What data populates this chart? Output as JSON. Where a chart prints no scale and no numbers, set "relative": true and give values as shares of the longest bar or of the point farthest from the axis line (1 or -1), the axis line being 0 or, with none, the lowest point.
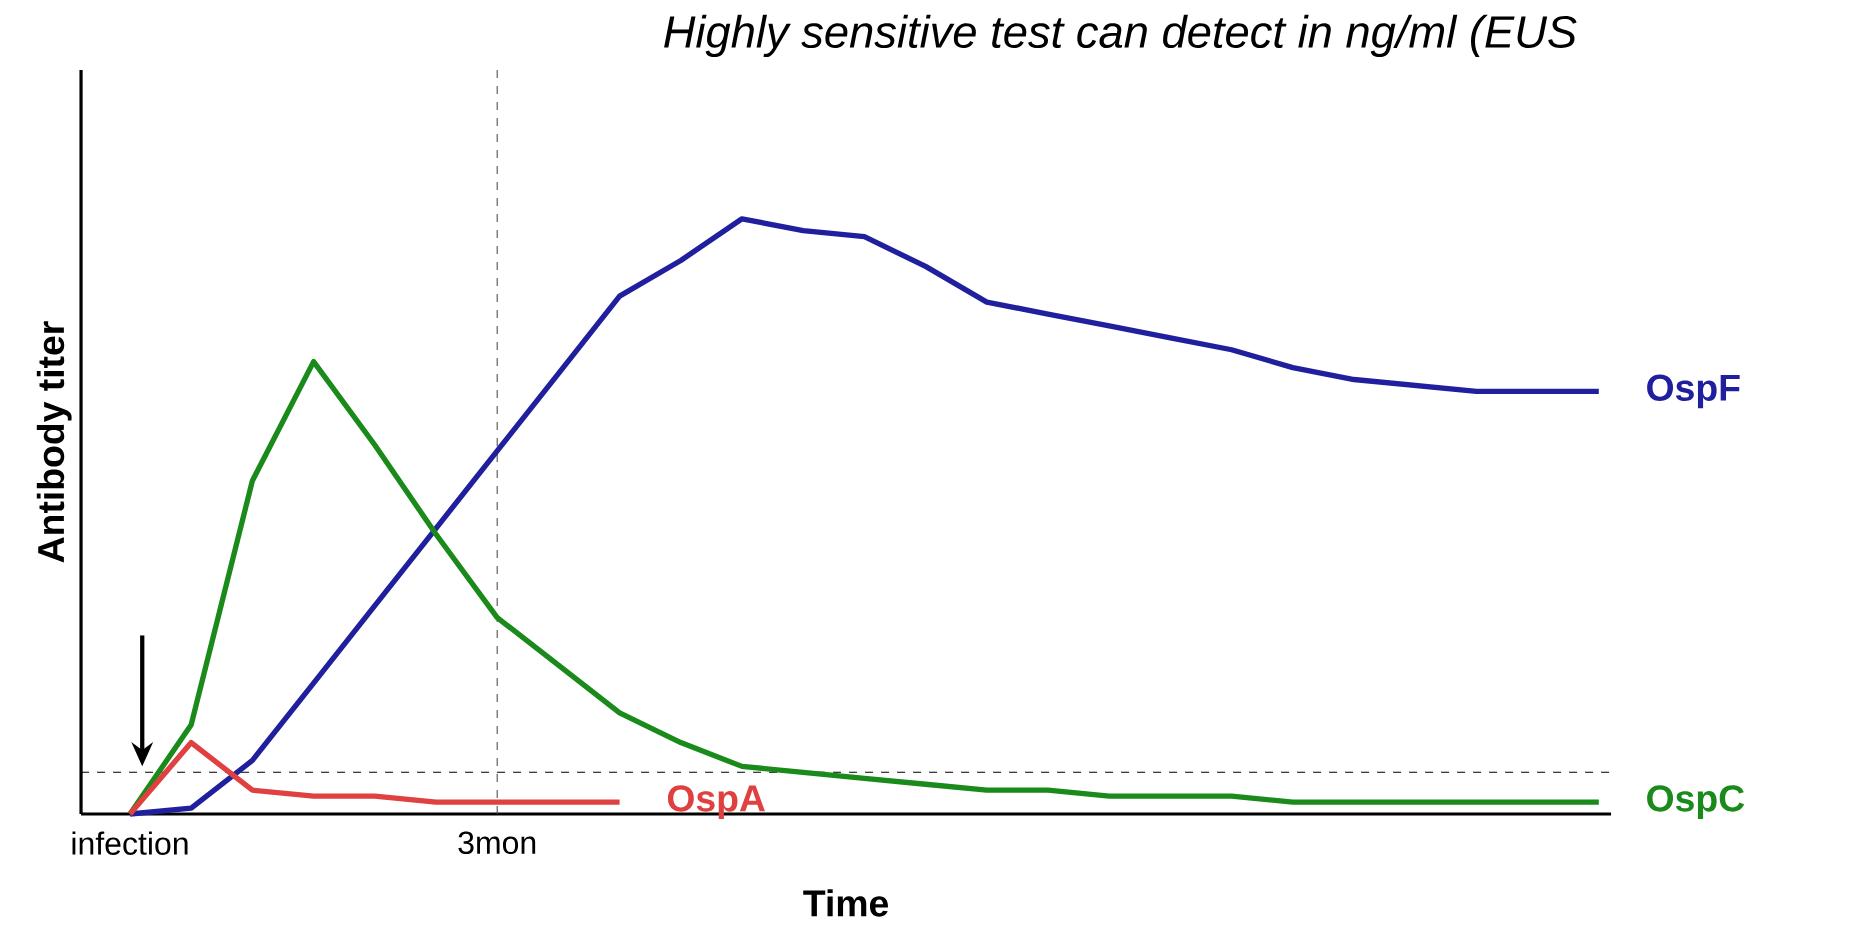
{
  "chart_data": {
    "type": "line",
    "relative": true,
    "title": "*Highly sensitive test can detect in ng/ml (EUS*",
    "xlabel": "Time",
    "ylabel": "Antibody titer",
    "categories": [
      "infection",
      null,
      null,
      null,
      null,
      null,
      "3mon",
      null,
      null,
      null,
      null,
      null,
      null,
      null,
      null,
      null,
      null,
      null,
      null,
      null,
      null,
      null,
      null,
      null,
      null
    ],
    "series": [
      {
        "name": "OspF",
        "color": "#20209e",
        "values": [
          0,
          0.01,
          0.09,
          0.22,
          0.35,
          0.48,
          0.61,
          0.74,
          0.87,
          0.93,
          1,
          0.98,
          0.97,
          0.92,
          0.86,
          0.84,
          0.82,
          0.8,
          0.78,
          0.75,
          0.73,
          0.72,
          0.71,
          0.71,
          0.71
        ]
      },
      {
        "name": "OspC",
        "color": "#1a8a1a",
        "values": [
          0,
          0.15,
          0.56,
          0.76,
          0.62,
          0.47,
          0.33,
          0.25,
          0.17,
          0.12,
          0.08,
          0.07,
          0.06,
          0.05,
          0.04,
          0.04,
          0.03,
          0.03,
          0.03,
          0.02,
          0.02,
          0.02,
          0.02,
          0.02,
          0.02
        ]
      },
      {
        "name": "OspA",
        "color": "#e04040",
        "values": [
          0,
          0.12,
          0.04,
          0.03,
          0.03,
          0.02,
          0.02,
          0.02,
          0.02,
          null,
          null,
          null,
          null,
          null,
          null,
          null,
          null,
          null,
          null,
          null,
          null,
          null,
          null,
          null,
          null
        ]
      }
    ],
    "ref_lines": [
      {
        "axis": "y",
        "value": 0.07,
        "line_style": "dashed"
      },
      {
        "axis": "x",
        "value": "3mon",
        "line_style": "dashed"
      }
    ],
    "marker": "none",
    "line_style": "solid",
    "grid": false
  }
}
